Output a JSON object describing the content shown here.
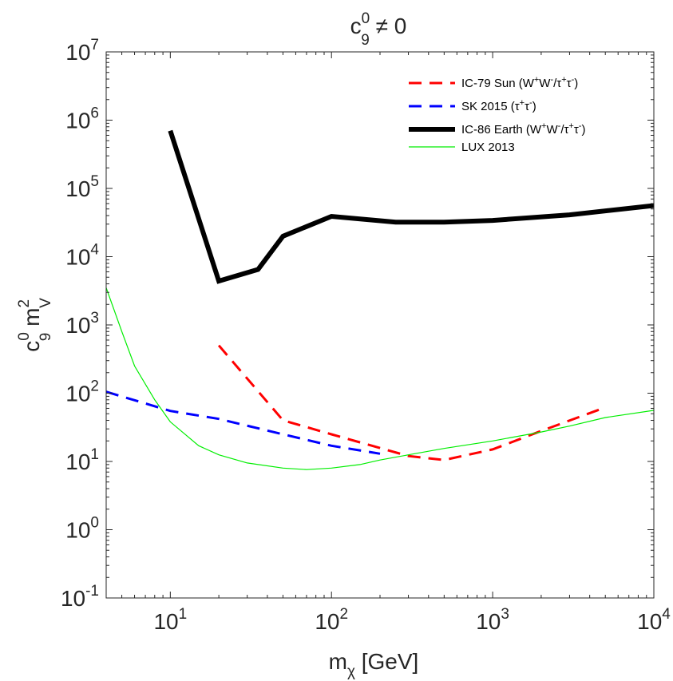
{
  "chart_data": {
    "type": "line",
    "title": {
      "base": "c",
      "sup": "0",
      "sub": "9",
      "suffix": " ≠ 0"
    },
    "xlabel": {
      "base": "m",
      "sub": "χ",
      "suffix": " [GeV]"
    },
    "ylabel": {
      "c": "c",
      "c_sup": "0",
      "c_sub": "9",
      "m": " m",
      "m_sup": "2",
      "m_sub": "V"
    },
    "xscale": "log",
    "yscale": "log",
    "xlim": [
      4,
      10000
    ],
    "ylim": [
      0.1,
      10000000
    ],
    "x_ticks": [
      {
        "value": 10,
        "base": "10",
        "exp": "1"
      },
      {
        "value": 100,
        "base": "10",
        "exp": "2"
      },
      {
        "value": 1000,
        "base": "10",
        "exp": "3"
      },
      {
        "value": 10000,
        "base": "10",
        "exp": "4"
      }
    ],
    "y_ticks": [
      {
        "value": 0.1,
        "base": "10",
        "exp": "-1"
      },
      {
        "value": 1,
        "base": "10",
        "exp": "0"
      },
      {
        "value": 10,
        "base": "10",
        "exp": "1"
      },
      {
        "value": 100,
        "base": "10",
        "exp": "2"
      },
      {
        "value": 1000,
        "base": "10",
        "exp": "3"
      },
      {
        "value": 10000,
        "base": "10",
        "exp": "4"
      },
      {
        "value": 100000,
        "base": "10",
        "exp": "5"
      },
      {
        "value": 1000000,
        "base": "10",
        "exp": "6"
      },
      {
        "value": 10000000,
        "base": "10",
        "exp": "7"
      }
    ],
    "grid": false,
    "legend_position": "top-right",
    "series": [
      {
        "name": "IC-79 Sun (W⁺W⁻/τ⁺τ⁻)",
        "legend": {
          "parts": [
            {
              "t": "IC-79 Sun (W"
            },
            {
              "t": "+",
              "sup": true
            },
            {
              "t": "W"
            },
            {
              "t": "-",
              "sup": true
            },
            {
              "t": "/τ"
            },
            {
              "t": "+",
              "sup": true
            },
            {
              "t": "τ"
            },
            {
              "t": "-",
              "sup": true
            },
            {
              "t": ")"
            }
          ]
        },
        "color": "#ff0000",
        "style": "dashed",
        "x": [
          20,
          50,
          100,
          300,
          500,
          1000,
          2000,
          5000
        ],
        "y": [
          500,
          40,
          25,
          12,
          10.5,
          15,
          28,
          62
        ]
      },
      {
        "name": "SK 2015 (τ⁺τ⁻)",
        "legend": {
          "parts": [
            {
              "t": "SK 2015 (τ"
            },
            {
              "t": "+",
              "sup": true
            },
            {
              "t": "τ"
            },
            {
              "t": "-",
              "sup": true
            },
            {
              "t": ")"
            }
          ]
        },
        "color": "#0000ff",
        "style": "dashed",
        "x": [
          4,
          10,
          20,
          50,
          100,
          200
        ],
        "y": [
          105,
          55,
          42,
          25,
          17,
          13
        ]
      },
      {
        "name": "IC-86 Earth (W⁺W⁻/τ⁺τ⁻)",
        "legend": {
          "parts": [
            {
              "t": "IC-86 Earth (W"
            },
            {
              "t": "+",
              "sup": true
            },
            {
              "t": "W"
            },
            {
              "t": "-",
              "sup": true
            },
            {
              "t": "/τ"
            },
            {
              "t": "+",
              "sup": true
            },
            {
              "t": "τ"
            },
            {
              "t": "-",
              "sup": true
            },
            {
              "t": ")"
            }
          ]
        },
        "color": "#000000",
        "style": "solid-thick",
        "x": [
          10,
          20,
          35,
          50,
          100,
          250,
          500,
          1000,
          3000,
          10000
        ],
        "y": [
          700000,
          4400,
          6500,
          20000,
          39000,
          32000,
          32000,
          34000,
          41000,
          56000
        ]
      },
      {
        "name": "LUX 2013",
        "legend": {
          "parts": [
            {
              "t": "LUX 2013"
            }
          ]
        },
        "color": "#00ee00",
        "style": "solid-thin",
        "x": [
          4,
          5,
          6,
          8,
          10,
          15,
          20,
          30,
          50,
          70,
          100,
          150,
          200,
          300,
          500,
          1000,
          2000,
          3000,
          5000,
          10000
        ],
        "y": [
          3500,
          800,
          250,
          80,
          38,
          17,
          12.5,
          9.5,
          8,
          7.6,
          8,
          9,
          10.5,
          12.5,
          15.5,
          20,
          27,
          33,
          44,
          56
        ]
      }
    ]
  }
}
